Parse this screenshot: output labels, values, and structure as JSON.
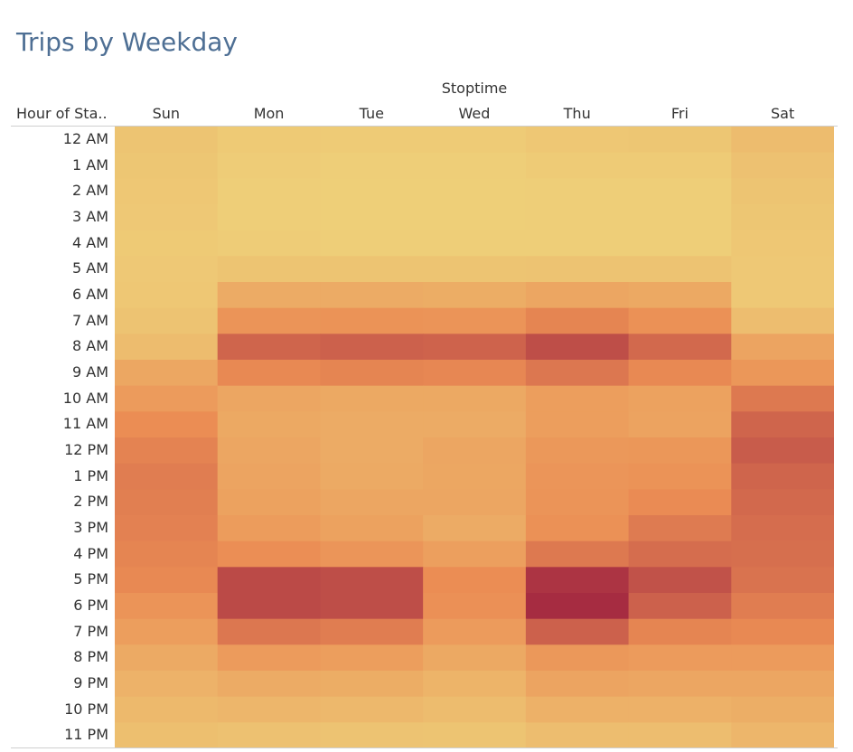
{
  "title": "Trips by Weekday",
  "column_axis_title": "Stoptime",
  "row_header_title": "Hour of Sta..",
  "chart_data": {
    "type": "heatmap",
    "title": "Trips by Weekday",
    "xlabel": "Stoptime",
    "ylabel": "Hour of Sta..",
    "columns": [
      "Sun",
      "Mon",
      "Tue",
      "Wed",
      "Thu",
      "Fri",
      "Sat"
    ],
    "rows": [
      "12 AM",
      "1 AM",
      "2 AM",
      "3 AM",
      "4 AM",
      "5 AM",
      "6 AM",
      "7 AM",
      "8 AM",
      "9 AM",
      "10 AM",
      "11 AM",
      "12 PM",
      "1 PM",
      "2 PM",
      "3 PM",
      "4 PM",
      "5 PM",
      "6 PM",
      "7 PM",
      "8 PM",
      "9 PM",
      "10 PM",
      "11 PM"
    ],
    "values": [
      [
        10,
        6,
        5,
        5,
        8,
        9,
        16
      ],
      [
        9,
        4,
        3,
        3,
        5,
        5,
        12
      ],
      [
        8,
        3,
        2,
        2,
        3,
        3,
        10
      ],
      [
        7,
        3,
        2,
        2,
        3,
        3,
        9
      ],
      [
        6,
        4,
        3,
        3,
        3,
        3,
        8
      ],
      [
        7,
        10,
        10,
        10,
        11,
        11,
        7
      ],
      [
        8,
        28,
        28,
        27,
        32,
        30,
        7
      ],
      [
        11,
        45,
        46,
        45,
        54,
        47,
        15
      ],
      [
        16,
        70,
        72,
        71,
        82,
        68,
        33
      ],
      [
        31,
        52,
        54,
        53,
        61,
        52,
        43
      ],
      [
        40,
        32,
        30,
        30,
        38,
        35,
        60
      ],
      [
        50,
        30,
        28,
        28,
        38,
        34,
        70
      ],
      [
        55,
        32,
        28,
        32,
        42,
        43,
        75
      ],
      [
        58,
        33,
        29,
        31,
        44,
        46,
        70
      ],
      [
        57,
        35,
        32,
        32,
        45,
        51,
        68
      ],
      [
        56,
        39,
        35,
        28,
        47,
        59,
        66
      ],
      [
        54,
        49,
        44,
        37,
        60,
        66,
        65
      ],
      [
        52,
        84,
        82,
        50,
        95,
        80,
        63
      ],
      [
        45,
        84,
        82,
        48,
        99,
        72,
        58
      ],
      [
        38,
        61,
        58,
        40,
        72,
        54,
        52
      ],
      [
        29,
        40,
        38,
        30,
        42,
        40,
        40
      ],
      [
        23,
        28,
        27,
        22,
        33,
        32,
        32
      ],
      [
        18,
        20,
        19,
        16,
        24,
        24,
        26
      ],
      [
        14,
        12,
        11,
        10,
        15,
        15,
        20
      ]
    ],
    "color_scale": {
      "low": "#eed27a",
      "mid": "#eb8d54",
      "high": "#a52a41"
    },
    "legend": "none",
    "grid": false
  }
}
